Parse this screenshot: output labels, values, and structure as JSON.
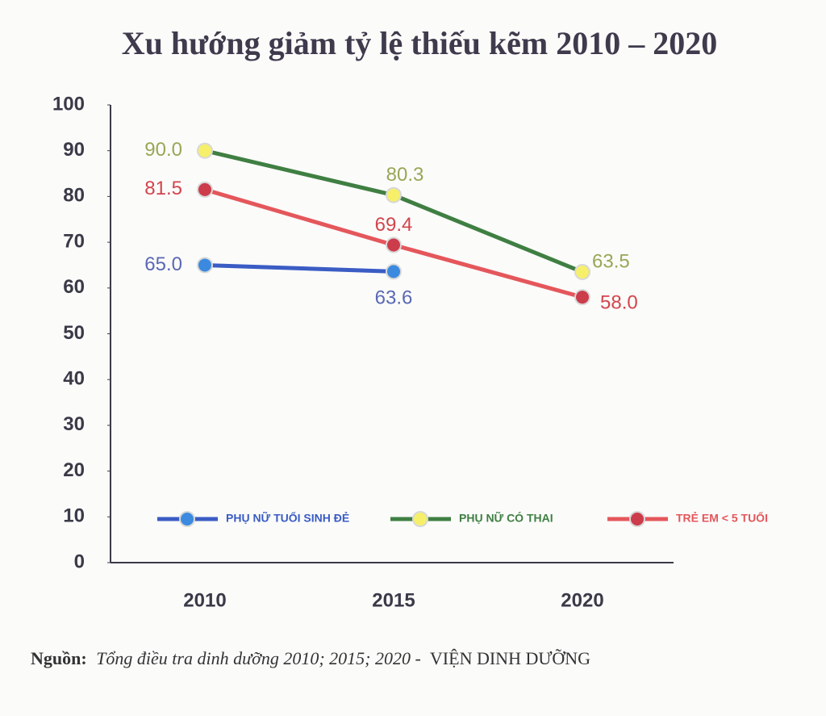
{
  "chart_data": {
    "type": "line",
    "title": "Xu hướng giảm tỷ lệ thiếu kẽm 2010 – 2020",
    "categories": [
      "2010",
      "2015",
      "2020"
    ],
    "series": [
      {
        "name": "PHỤ NỮ TUỔI SINH ĐẺ",
        "color": "#3a5cc4",
        "marker_color": "#3b8ae0",
        "label_color": "#5a68b4",
        "values": [
          65.0,
          63.6,
          null
        ],
        "value_labels": [
          "65.0",
          "63.6",
          null
        ]
      },
      {
        "name": "PHỤ NỮ CÓ THAI",
        "color": "#3f7f42",
        "marker_color": "#f6ef6a",
        "label_color": "#9aa655",
        "values": [
          90.0,
          80.3,
          63.5
        ],
        "value_labels": [
          "90.0",
          "80.3",
          "63.5"
        ]
      },
      {
        "name": "TRẺ EM < 5 TUỔI",
        "color": "#e4575b",
        "marker_color": "#cc3c4b",
        "label_color": "#d2454c",
        "values": [
          81.5,
          69.4,
          58.0
        ],
        "value_labels": [
          "81.5",
          "69.4",
          "58.0"
        ]
      }
    ],
    "ylim": [
      0,
      100
    ],
    "yticks": [
      0,
      10,
      20,
      30,
      40,
      50,
      60,
      70,
      80,
      90,
      100
    ],
    "grid": false,
    "legend": "bottom",
    "source_label": "Nguồn:",
    "source_text": "Tổng điều tra dinh dưỡng 2010; 2015; 2020 -",
    "source_org": "VIỆN DINH DƯỠNG"
  }
}
